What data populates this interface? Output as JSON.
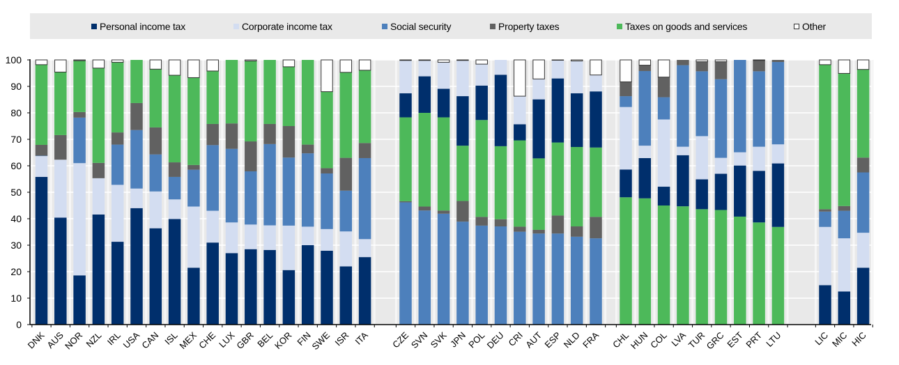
{
  "legend": {
    "items": [
      {
        "key": "pit",
        "label": "Personal income tax",
        "color": "#002f6c"
      },
      {
        "key": "cit",
        "label": "Corporate income tax",
        "color": "#d3ddf1"
      },
      {
        "key": "ss",
        "label": "Social security",
        "color": "#4d80bc"
      },
      {
        "key": "prop",
        "label": "Property taxes",
        "color": "#616161"
      },
      {
        "key": "goods",
        "label": "Taxes on goods and services",
        "color": "#4db95a"
      },
      {
        "key": "other",
        "label": "Other",
        "color": "#ffffff"
      }
    ]
  },
  "chart_data": {
    "type": "bar",
    "stacked": true,
    "title": "",
    "xlabel": "",
    "ylabel": "",
    "ylim": [
      0,
      100
    ],
    "yticks": [
      0,
      10,
      20,
      30,
      40,
      50,
      60,
      70,
      80,
      90,
      100
    ],
    "grid": true,
    "legend_position": "top",
    "groups": [
      {
        "stack_order": [
          "pit",
          "cit",
          "ss",
          "prop",
          "goods",
          "other"
        ],
        "categories": [
          "DNK",
          "AUS",
          "NOR",
          "NZL",
          "IRL",
          "USA",
          "CAN",
          "ISL",
          "MEX",
          "CHE",
          "LUX",
          "GBR",
          "BEL",
          "KOR",
          "FIN",
          "SWE",
          "ISR",
          "ITA"
        ],
        "series": {
          "pit": [
            55.8,
            40.4,
            18.6,
            41.6,
            31.3,
            44.0,
            36.4,
            39.9,
            21.5,
            31.0,
            27.0,
            28.5,
            28.2,
            20.6,
            30.0,
            27.9,
            22.0,
            25.5
          ],
          "cit": [
            7.9,
            21.9,
            42.4,
            13.7,
            21.5,
            7.4,
            13.9,
            7.4,
            23.1,
            12.0,
            11.6,
            9.3,
            9.3,
            16.8,
            7.0,
            8.2,
            13.2,
            6.8
          ],
          "ss": [
            0.1,
            0.0,
            17.2,
            0.0,
            15.2,
            22.1,
            14.0,
            8.5,
            13.9,
            24.8,
            27.8,
            20.1,
            30.7,
            25.7,
            27.7,
            21.0,
            15.4,
            30.6
          ],
          "prop": [
            4.1,
            9.3,
            2.1,
            5.8,
            4.6,
            10.2,
            10.2,
            5.5,
            1.8,
            8.0,
            9.6,
            11.3,
            7.6,
            11.9,
            3.3,
            2.0,
            12.4,
            5.7
          ],
          "goods": [
            30.3,
            23.8,
            19.4,
            35.8,
            26.5,
            16.3,
            22.0,
            32.9,
            33.0,
            20.0,
            24.0,
            30.4,
            24.2,
            22.4,
            32.0,
            28.9,
            32.3,
            27.5
          ],
          "other": [
            1.8,
            4.6,
            0.3,
            3.1,
            0.9,
            0.0,
            3.5,
            5.8,
            6.7,
            4.2,
            0.0,
            0.4,
            0.0,
            2.6,
            0.0,
            12.0,
            4.7,
            3.9
          ]
        }
      },
      {
        "stack_order": [
          "ss",
          "prop",
          "goods",
          "pit",
          "cit",
          "other"
        ],
        "categories": [
          "CZE",
          "SVN",
          "SVK",
          "JPN",
          "POL",
          "DEU",
          "CRI",
          "AUT",
          "ESP",
          "NLD",
          "FRA"
        ],
        "series": {
          "ss": [
            46.2,
            43.1,
            41.9,
            38.9,
            37.4,
            37.1,
            35.1,
            34.4,
            34.4,
            33.2,
            32.6
          ],
          "prop": [
            0.4,
            1.5,
            1.2,
            7.8,
            3.3,
            2.7,
            1.9,
            1.4,
            6.8,
            3.9,
            8.1
          ],
          "goods": [
            31.7,
            35.4,
            35.2,
            20.9,
            36.6,
            27.6,
            32.6,
            27.0,
            27.6,
            30.0,
            26.2
          ],
          "pit": [
            9.1,
            13.8,
            10.8,
            18.7,
            13.0,
            27.0,
            6.1,
            22.3,
            24.2,
            20.3,
            21.2
          ],
          "cit": [
            12.4,
            6.0,
            10.0,
            13.5,
            8.1,
            5.6,
            10.6,
            7.7,
            6.9,
            12.2,
            6.2
          ],
          "other": [
            0.2,
            0.2,
            0.9,
            0.2,
            1.6,
            0.0,
            13.7,
            7.2,
            0.1,
            0.4,
            5.7
          ]
        }
      },
      {
        "stack_order": [
          "goods",
          "pit",
          "cit",
          "ss",
          "prop",
          "other"
        ],
        "categories": [
          "CHL",
          "HUN",
          "COL",
          "LVA",
          "TUR",
          "GRC",
          "EST",
          "PRT",
          "LTU"
        ],
        "series": {
          "goods": [
            48.1,
            47.7,
            45.0,
            44.7,
            43.6,
            43.3,
            40.8,
            38.6,
            36.9
          ],
          "pit": [
            10.5,
            15.2,
            7.1,
            19.3,
            11.3,
            13.7,
            19.3,
            19.5,
            24.0
          ],
          "cit": [
            23.6,
            4.7,
            25.4,
            3.2,
            16.3,
            6.0,
            5.0,
            9.1,
            7.2
          ],
          "ss": [
            4.1,
            28.2,
            8.4,
            30.8,
            24.5,
            29.7,
            34.9,
            28.5,
            31.1
          ],
          "prop": [
            5.4,
            2.2,
            7.6,
            2.0,
            3.6,
            6.6,
            0.0,
            4.1,
            0.8
          ],
          "other": [
            8.3,
            2.0,
            6.5,
            0.0,
            0.7,
            0.7,
            0.0,
            0.2,
            0.0
          ]
        }
      },
      {
        "stack_order": [
          "pit",
          "cit",
          "ss",
          "prop",
          "goods",
          "other"
        ],
        "categories": [
          "LIC",
          "MIC",
          "HIC"
        ],
        "series": {
          "pit": [
            14.9,
            12.5,
            21.5
          ],
          "cit": [
            22.0,
            20.1,
            13.2
          ],
          "ss": [
            5.8,
            10.4,
            22.8
          ],
          "prop": [
            0.9,
            1.8,
            5.6
          ],
          "goods": [
            54.6,
            50.1,
            33.3
          ],
          "other": [
            1.8,
            5.1,
            3.6
          ]
        }
      }
    ]
  }
}
